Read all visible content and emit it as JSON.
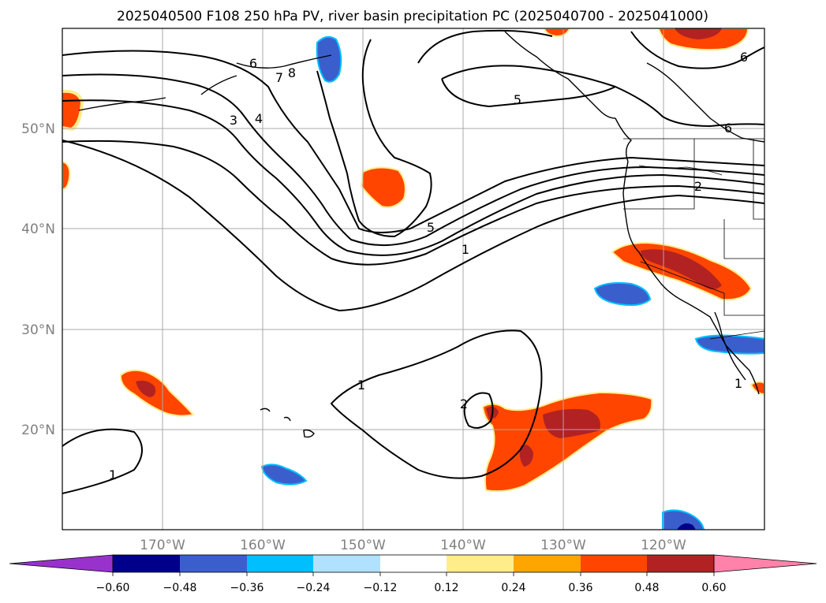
{
  "title": "2025040500 F108 250 hPa PV, river basin precipitation PC (2025040700 - 2025041000)",
  "map": {
    "lon_range": [
      -180,
      -110
    ],
    "lat_range": [
      10,
      60
    ],
    "lon_ticks": [
      {
        "value": -170,
        "label": "170°W"
      },
      {
        "value": -160,
        "label": "160°W"
      },
      {
        "value": -150,
        "label": "150°W"
      },
      {
        "value": -140,
        "label": "140°W"
      },
      {
        "value": -130,
        "label": "130°W"
      },
      {
        "value": -120,
        "label": "120°W"
      }
    ],
    "lat_ticks": [
      {
        "value": 50,
        "label": "50°N"
      },
      {
        "value": 40,
        "label": "40°N"
      },
      {
        "value": 30,
        "label": "30°N"
      },
      {
        "value": 20,
        "label": "20°N"
      }
    ],
    "gridlines": true,
    "contour_color": "#000000",
    "contour_labels": [
      "1",
      "1",
      "1",
      "1",
      "2",
      "2",
      "3",
      "4",
      "5",
      "5",
      "6",
      "6",
      "6",
      "7",
      "8"
    ],
    "features": [
      "coastlines",
      "state-borders",
      "river-basin-boundaries"
    ]
  },
  "colorbar": {
    "orientation": "horizontal",
    "extend": "both",
    "tick_labels": [
      "−0.60",
      "−0.48",
      "−0.36",
      "−0.24",
      "−0.12",
      "0.12",
      "0.24",
      "0.36",
      "0.48",
      "0.60"
    ],
    "colors": [
      "#9932CC",
      "#00008B",
      "#3A5FCD",
      "#00BFFF",
      "#B0E2FF",
      "#FFFFFF",
      "#FFEC8B",
      "#FFA500",
      "#FF4500",
      "#B22222",
      "#FF82AB"
    ]
  }
}
